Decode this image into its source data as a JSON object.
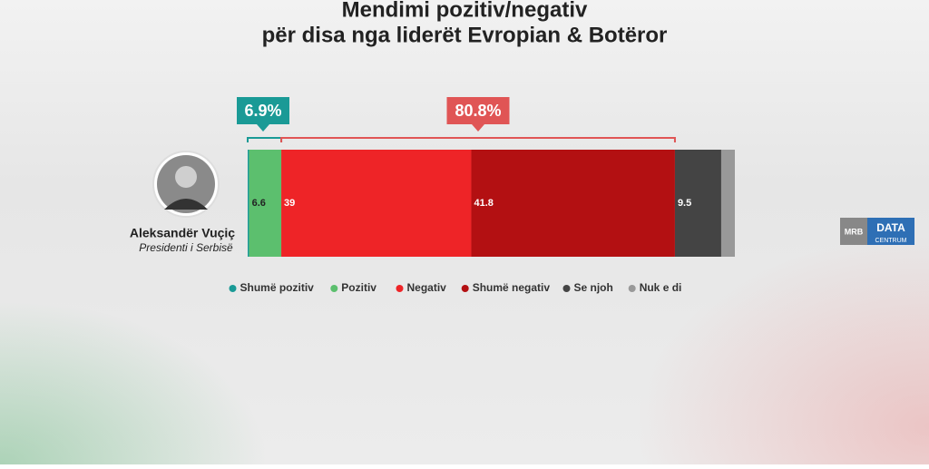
{
  "chart_data": {
    "type": "stacked-hbar",
    "title": "Mendimi pozitiv/negativ",
    "subtitle": "për disa nga liderët Evropian & Botëror",
    "person": {
      "name": "Aleksandër Vuçiç",
      "role": "Presidenti i Serbisë"
    },
    "logo": {
      "left": "MRB",
      "right_top": "DATA",
      "right_bottom": "CENTRUM"
    },
    "xlim": [
      0,
      100
    ],
    "series": [
      {
        "name": "Shumë pozitiv",
        "color": "#1a9a96",
        "values": [
          0.3
        ]
      },
      {
        "name": "Pozitiv",
        "color": "#5cbf6e",
        "values": [
          6.6
        ]
      },
      {
        "name": "Negativ",
        "color": "#ee2427",
        "values": [
          39
        ]
      },
      {
        "name": "Shumë negativ",
        "color": "#b31012",
        "values": [
          41.8
        ]
      },
      {
        "name": "Se njoh",
        "color": "#444444",
        "values": [
          9.5
        ]
      },
      {
        "name": "Nuk e di",
        "color": "#999999",
        "values": [
          2.8
        ]
      }
    ],
    "annotations": [
      {
        "text": "6.9%",
        "value": 6.9,
        "color": "#1a9a96"
      },
      {
        "text": "80.8%",
        "value": 80.8,
        "color": "#e05555"
      }
    ]
  }
}
